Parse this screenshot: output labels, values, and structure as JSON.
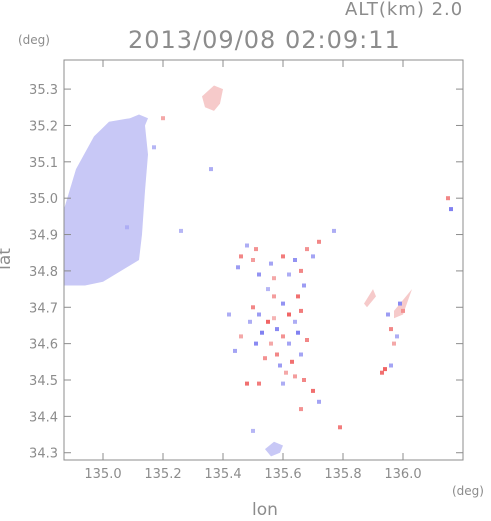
{
  "header": {
    "altitude_label": "ALT(km) 2.0",
    "timestamp": "2013/09/08 02:09:11"
  },
  "chart_data": {
    "type": "heatmap",
    "title": "2013/09/08 02:09:11",
    "subtitle": "ALT(km) 2.0",
    "xlabel": "lon",
    "ylabel": "lat",
    "x_unit": "(deg)",
    "y_unit": "(deg)",
    "xlim": [
      134.87,
      136.2
    ],
    "ylim": [
      34.28,
      35.38
    ],
    "x_ticks": [
      135.0,
      135.2,
      135.4,
      135.6,
      135.8,
      136.0
    ],
    "x_tick_labels": [
      "135.0",
      "135.2",
      "135.4",
      "135.6",
      "135.8",
      "136.0"
    ],
    "y_ticks": [
      34.3,
      34.4,
      34.5,
      34.6,
      34.7,
      34.8,
      34.9,
      35.0,
      35.1,
      35.2,
      35.3
    ],
    "y_tick_labels": [
      "34.3",
      "34.4",
      "34.5",
      "34.6",
      "34.7",
      "34.8",
      "34.9",
      "35.0",
      "35.1",
      "35.2",
      "35.3"
    ],
    "grid": false,
    "colors": {
      "negative_strong": "#6f6ff0",
      "negative_weak": "#c8c8f6",
      "positive_weak": "#f6caca",
      "positive_strong": "#f05a5a",
      "frame": "#8c8c8c"
    },
    "regions": [
      {
        "kind": "polygon",
        "tone": "negative_weak",
        "points": [
          [
            134.87,
            34.76
          ],
          [
            134.87,
            34.97
          ],
          [
            134.91,
            35.08
          ],
          [
            134.97,
            35.17
          ],
          [
            135.02,
            35.21
          ],
          [
            135.09,
            35.22
          ],
          [
            135.14,
            35.2
          ],
          [
            135.15,
            35.12
          ],
          [
            135.14,
            35.02
          ],
          [
            135.13,
            34.9
          ],
          [
            135.12,
            34.83
          ],
          [
            135.06,
            34.8
          ],
          [
            135.0,
            34.77
          ],
          [
            134.94,
            34.76
          ]
        ]
      },
      {
        "kind": "polygon",
        "tone": "negative_weak",
        "points": [
          [
            135.1,
            35.19
          ],
          [
            135.14,
            35.2
          ],
          [
            135.15,
            35.22
          ],
          [
            135.12,
            35.23
          ],
          [
            135.09,
            35.22
          ]
        ]
      },
      {
        "kind": "polygon",
        "tone": "positive_weak",
        "points": [
          [
            135.33,
            35.28
          ],
          [
            135.37,
            35.31
          ],
          [
            135.4,
            35.3
          ],
          [
            135.39,
            35.26
          ],
          [
            135.37,
            35.24
          ],
          [
            135.34,
            35.25
          ]
        ]
      },
      {
        "kind": "polygon",
        "tone": "negative_weak",
        "points": [
          [
            135.54,
            34.31
          ],
          [
            135.57,
            34.33
          ],
          [
            135.6,
            34.32
          ],
          [
            135.59,
            34.3
          ],
          [
            135.56,
            34.29
          ]
        ]
      },
      {
        "kind": "polygon",
        "tone": "positive_weak",
        "points": [
          [
            135.97,
            34.67
          ],
          [
            136.0,
            34.68
          ],
          [
            136.03,
            34.75
          ],
          [
            136.0,
            34.72
          ],
          [
            135.97,
            34.69
          ]
        ]
      },
      {
        "kind": "polygon",
        "tone": "positive_weak",
        "points": [
          [
            135.88,
            34.7
          ],
          [
            135.91,
            34.73
          ],
          [
            135.9,
            34.75
          ],
          [
            135.87,
            34.71
          ]
        ]
      }
    ],
    "cells": [
      [
        135.5,
        34.7,
        0.6
      ],
      [
        135.52,
        34.68,
        -0.5
      ],
      [
        135.55,
        34.66,
        0.9
      ],
      [
        135.58,
        34.64,
        -0.7
      ],
      [
        135.6,
        34.62,
        0.5
      ],
      [
        135.62,
        34.6,
        -0.4
      ],
      [
        135.56,
        34.6,
        0.3
      ],
      [
        135.53,
        34.63,
        -0.8
      ],
      [
        135.58,
        34.57,
        0.6
      ],
      [
        135.64,
        34.66,
        -0.3
      ],
      [
        135.66,
        34.69,
        0.7
      ],
      [
        135.6,
        34.71,
        -0.6
      ],
      [
        135.57,
        34.73,
        0.4
      ],
      [
        135.55,
        34.75,
        -0.2
      ],
      [
        135.63,
        34.55,
        0.8
      ],
      [
        135.59,
        34.54,
        -0.5
      ],
      [
        135.61,
        34.52,
        0.3
      ],
      [
        135.66,
        34.57,
        -0.4
      ],
      [
        135.68,
        34.61,
        0.6
      ],
      [
        135.51,
        34.6,
        -0.7
      ],
      [
        135.54,
        34.56,
        0.5
      ],
      [
        135.62,
        34.68,
        0.9
      ],
      [
        135.65,
        34.63,
        -0.8
      ],
      [
        135.57,
        34.67,
        0.2
      ],
      [
        135.49,
        34.66,
        -0.3
      ],
      [
        135.45,
        34.81,
        -0.5
      ],
      [
        135.46,
        34.84,
        0.6
      ],
      [
        135.48,
        34.87,
        -0.3
      ],
      [
        135.5,
        34.83,
        0.4
      ],
      [
        135.56,
        34.82,
        -0.4
      ],
      [
        135.6,
        34.84,
        0.7
      ],
      [
        135.64,
        34.83,
        -0.6
      ],
      [
        135.68,
        34.86,
        0.5
      ],
      [
        135.66,
        34.8,
        0.6
      ],
      [
        135.62,
        34.79,
        -0.3
      ],
      [
        135.57,
        34.78,
        0.3
      ],
      [
        135.52,
        34.79,
        -0.6
      ],
      [
        135.7,
        34.84,
        -0.4
      ],
      [
        135.72,
        34.88,
        0.6
      ],
      [
        135.65,
        34.73,
        0.8
      ],
      [
        135.67,
        34.76,
        -0.5
      ],
      [
        135.52,
        34.49,
        0.7
      ],
      [
        135.48,
        34.49,
        0.8
      ],
      [
        135.6,
        34.49,
        -0.3
      ],
      [
        135.67,
        34.5,
        0.6
      ],
      [
        135.7,
        34.47,
        0.8
      ],
      [
        135.66,
        34.42,
        0.5
      ],
      [
        135.72,
        34.44,
        -0.4
      ],
      [
        135.64,
        34.51,
        0.4
      ],
      [
        135.94,
        34.53,
        0.9
      ],
      [
        135.96,
        34.54,
        -0.4
      ],
      [
        135.93,
        34.52,
        0.8
      ],
      [
        135.96,
        34.64,
        0.6
      ],
      [
        135.98,
        34.62,
        -0.3
      ],
      [
        135.99,
        34.71,
        -0.7
      ],
      [
        136.0,
        34.69,
        0.5
      ],
      [
        135.95,
        34.68,
        -0.5
      ],
      [
        135.97,
        34.6,
        0.3
      ],
      [
        136.15,
        35.0,
        0.6
      ],
      [
        136.16,
        34.97,
        -0.8
      ],
      [
        135.79,
        34.37,
        0.7
      ],
      [
        135.77,
        34.91,
        -0.3
      ],
      [
        135.36,
        35.08,
        -0.3
      ],
      [
        135.2,
        35.22,
        0.3
      ],
      [
        135.17,
        35.14,
        -0.2
      ],
      [
        135.08,
        34.92,
        -0.3
      ],
      [
        135.26,
        34.91,
        -0.2
      ],
      [
        135.42,
        34.68,
        -0.3
      ],
      [
        135.5,
        34.36,
        -0.2
      ],
      [
        135.46,
        34.62,
        0.3
      ],
      [
        135.44,
        34.58,
        -0.4
      ],
      [
        135.51,
        34.86,
        0.5
      ]
    ]
  }
}
